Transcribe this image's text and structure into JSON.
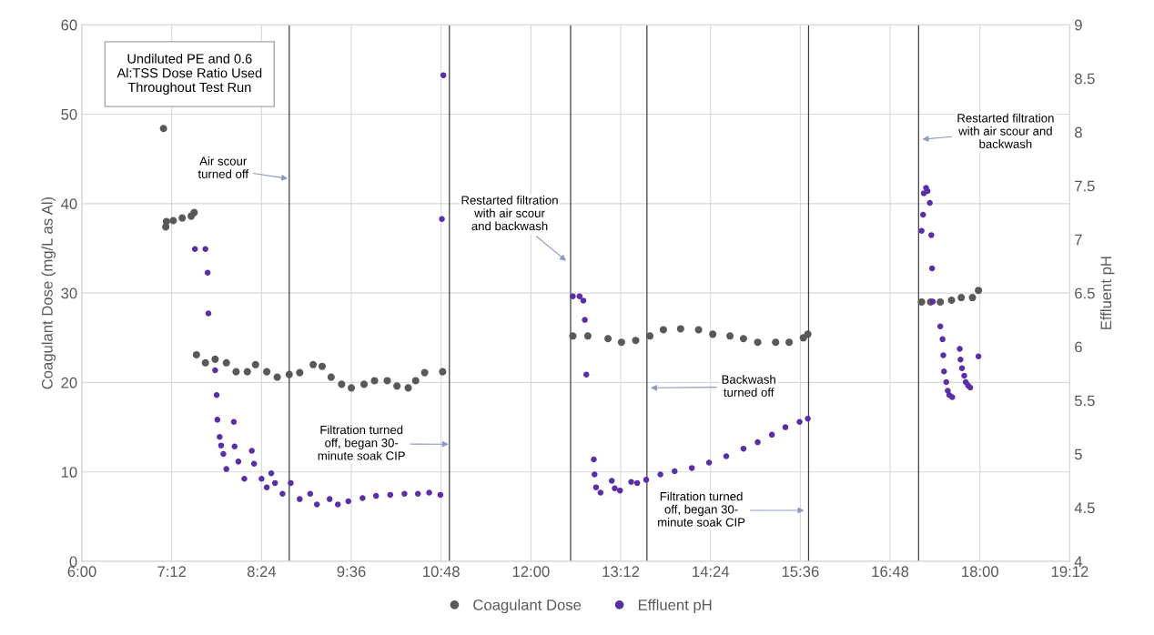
{
  "chart_data": {
    "type": "scatter",
    "ylabel": "Coagulant Dose (mg/L as Al)",
    "y2label": "Effluent pH",
    "xlim": [
      6,
      19.2
    ],
    "xticks": [
      {
        "value": 6,
        "label": "6:00"
      },
      {
        "value": 7.2,
        "label": "7:12"
      },
      {
        "value": 8.4,
        "label": "8:24"
      },
      {
        "value": 9.6,
        "label": "9:36"
      },
      {
        "value": 10.8,
        "label": "10:48"
      },
      {
        "value": 12,
        "label": "12:00"
      },
      {
        "value": 13.2,
        "label": "13:12"
      },
      {
        "value": 14.4,
        "label": "14:24"
      },
      {
        "value": 15.6,
        "label": "15:36"
      },
      {
        "value": 16.8,
        "label": "16:48"
      },
      {
        "value": 18,
        "label": "18:00"
      },
      {
        "value": 19.2,
        "label": "19:12"
      }
    ],
    "ylim": [
      0,
      60
    ],
    "yticks": [
      0,
      10,
      20,
      30,
      40,
      50,
      60
    ],
    "y2lim": [
      4,
      9
    ],
    "y2ticks": [
      4,
      4.5,
      5,
      5.5,
      6,
      6.5,
      7,
      7.5,
      8,
      8.5,
      9
    ],
    "grid": true,
    "legend": "bottom",
    "marker": "circle",
    "series": [
      {
        "name": "Coagulant Dose",
        "color": "#595959",
        "x": [
          7.09,
          7.12,
          7.13,
          7.22,
          7.34,
          7.46,
          7.5,
          7.53,
          7.65,
          7.78,
          7.93,
          8.06,
          8.21,
          8.32,
          8.47,
          8.61,
          8.77,
          8.91,
          9.09,
          9.21,
          9.33,
          9.47,
          9.6,
          9.77,
          9.91,
          10.08,
          10.21,
          10.36,
          10.46,
          10.58,
          10.82,
          12.56,
          12.76,
          13.03,
          13.21,
          13.4,
          13.59,
          13.77,
          14.0,
          14.24,
          14.43,
          14.66,
          14.84,
          15.03,
          15.27,
          15.45,
          15.64,
          15.7,
          17.22,
          17.34,
          17.47,
          17.62,
          17.75,
          17.9,
          17.98
        ],
        "values": [
          48.4,
          37.4,
          38.0,
          38.1,
          38.4,
          38.6,
          39.0,
          23.1,
          22.2,
          22.6,
          22.2,
          21.2,
          21.2,
          22.0,
          21.2,
          20.6,
          20.9,
          21.1,
          22.0,
          21.8,
          20.6,
          19.8,
          19.4,
          19.8,
          20.2,
          20.2,
          19.6,
          19.4,
          20.2,
          21.1,
          21.2,
          25.2,
          25.2,
          24.9,
          24.5,
          24.7,
          25.2,
          25.9,
          26.0,
          25.9,
          25.4,
          25.2,
          24.9,
          24.5,
          24.5,
          24.5,
          25.0,
          25.4,
          29.0,
          29.0,
          29.0,
          29.2,
          29.5,
          29.5,
          30.3
        ]
      },
      {
        "name": "Effluent pH",
        "color": "#5a2ea6",
        "axis": "y2",
        "x": [
          7.51,
          7.65,
          7.68,
          7.69,
          7.78,
          7.8,
          7.81,
          7.84,
          7.86,
          7.89,
          7.93,
          8.03,
          8.04,
          8.09,
          8.17,
          8.27,
          8.3,
          8.4,
          8.47,
          8.53,
          8.58,
          8.68,
          8.79,
          8.91,
          9.05,
          9.14,
          9.31,
          9.42,
          9.56,
          9.75,
          9.93,
          10.12,
          10.31,
          10.49,
          10.64,
          10.79,
          10.81,
          10.83,
          12.56,
          12.65,
          12.7,
          12.72,
          12.74,
          12.84,
          12.85,
          12.87,
          12.93,
          13.08,
          13.12,
          13.19,
          13.34,
          13.42,
          13.54,
          13.73,
          13.92,
          14.15,
          14.38,
          14.61,
          14.84,
          15.03,
          15.22,
          15.4,
          15.59,
          15.7,
          17.22,
          17.24,
          17.25,
          17.28,
          17.3,
          17.33,
          17.35,
          17.36,
          17.37,
          17.47,
          17.5,
          17.51,
          17.52,
          17.55,
          17.57,
          17.59,
          17.63,
          17.73,
          17.74,
          17.76,
          17.79,
          17.81,
          17.84,
          17.87,
          17.98
        ],
        "values": [
          6.91,
          6.91,
          6.69,
          6.31,
          5.78,
          5.55,
          5.32,
          5.16,
          5.08,
          5.0,
          4.86,
          5.3,
          5.07,
          4.93,
          4.77,
          5.03,
          4.91,
          4.77,
          4.69,
          4.82,
          4.73,
          4.63,
          4.73,
          4.58,
          4.63,
          4.53,
          4.58,
          4.53,
          4.56,
          4.59,
          4.61,
          4.62,
          4.63,
          4.63,
          4.64,
          4.62,
          7.19,
          8.53,
          6.47,
          6.47,
          6.43,
          6.25,
          5.74,
          4.95,
          4.81,
          4.69,
          4.64,
          4.75,
          4.68,
          4.66,
          4.74,
          4.73,
          4.76,
          4.81,
          4.84,
          4.87,
          4.92,
          4.98,
          5.05,
          5.11,
          5.18,
          5.25,
          5.3,
          5.33,
          7.08,
          7.23,
          7.43,
          7.48,
          7.45,
          7.34,
          7.04,
          6.73,
          6.42,
          6.19,
          6.07,
          5.92,
          5.77,
          5.67,
          5.59,
          5.55,
          5.53,
          5.98,
          5.88,
          5.8,
          5.73,
          5.67,
          5.64,
          5.62,
          5.91
        ]
      }
    ],
    "ref_lines": [
      {
        "axis": "x",
        "value": 8.77,
        "color": "#404040"
      },
      {
        "axis": "x",
        "value": 10.91,
        "color": "#404040"
      },
      {
        "axis": "x",
        "value": 12.53,
        "color": "#404040"
      },
      {
        "axis": "x",
        "value": 13.55,
        "color": "#404040"
      },
      {
        "axis": "x",
        "value": 15.71,
        "color": "#404040"
      },
      {
        "axis": "x",
        "value": 17.18,
        "color": "#404040"
      }
    ],
    "annotations": [
      "Undiluted PE and 0.6\nAl:TSS Dose Ratio Used\nThroughout Test Run",
      {
        "text": "Air scour\nturned off",
        "x": 8.75,
        "y": 42.8
      },
      {
        "text": "Filtration turned\noff, began 30-\nminute soak CIP",
        "x": 10.9,
        "y": 13.1
      },
      {
        "text": "Restarted filtration\nwith air scour\nand backwash",
        "x": 12.47,
        "y": 33.6
      },
      {
        "text": "Backwash\nturned off",
        "x": 13.6,
        "y": 19.4
      },
      {
        "text": "Filtration turned\noff, began 30-\nminute soak CIP",
        "x": 15.65,
        "y": 5.7
      },
      {
        "text": "Restarted filtration\nwith air scour and\nbackwash",
        "x": 17.23,
        "y": 47.2
      }
    ]
  }
}
